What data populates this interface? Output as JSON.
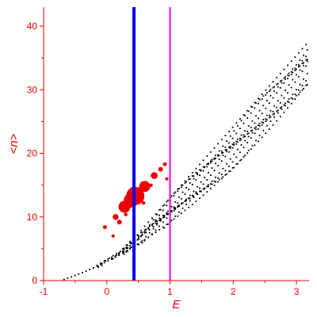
{
  "chart_data": {
    "type": "scatter",
    "xlabel": "E",
    "ylabel": "<n>",
    "xlim": [
      -1,
      3.2
    ],
    "ylim": [
      0,
      43
    ],
    "grid": false,
    "legend": "none",
    "colors": {
      "axis": "#ee0000",
      "background_points": "#000000",
      "highlight_points": "#ee0000",
      "line_blue": "#0000ee",
      "line_magenta": "#ee00ee"
    },
    "x_ticks": [
      {
        "value": -1,
        "label": "-1"
      },
      {
        "value": 0,
        "label": "0"
      },
      {
        "value": 1,
        "label": "1"
      },
      {
        "value": 2,
        "label": "2"
      },
      {
        "value": 3,
        "label": "3"
      }
    ],
    "y_ticks": [
      {
        "value": 0,
        "label": "0"
      },
      {
        "value": 10,
        "label": "10"
      },
      {
        "value": 20,
        "label": "20"
      },
      {
        "value": 30,
        "label": "30"
      },
      {
        "value": 40,
        "label": "40"
      }
    ],
    "vertical_lines": [
      {
        "x": 0.43,
        "color": "#0000ee"
      },
      {
        "x": 1.0,
        "color": "#ee00ee"
      }
    ],
    "highlight_points": [
      {
        "x": 0.45,
        "y": 13.3,
        "weight": 1.0
      },
      {
        "x": 0.38,
        "y": 12.6,
        "weight": 0.75
      },
      {
        "x": 0.28,
        "y": 11.6,
        "weight": 0.6
      },
      {
        "x": 0.6,
        "y": 14.8,
        "weight": 0.55
      },
      {
        "x": 0.42,
        "y": 14.0,
        "weight": 0.45
      },
      {
        "x": 0.75,
        "y": 16.5,
        "weight": 0.28
      },
      {
        "x": 0.14,
        "y": 10.0,
        "weight": 0.22
      },
      {
        "x": 0.85,
        "y": 17.5,
        "weight": 0.15
      },
      {
        "x": 0.2,
        "y": 9.2,
        "weight": 0.15
      },
      {
        "x": -0.03,
        "y": 8.4,
        "weight": 0.1
      },
      {
        "x": 0.92,
        "y": 18.3,
        "weight": 0.1
      },
      {
        "x": 0.3,
        "y": 10.4,
        "weight": 0.08
      },
      {
        "x": 0.58,
        "y": 12.2,
        "weight": 0.08
      },
      {
        "x": 0.7,
        "y": 15.0,
        "weight": 0.07
      },
      {
        "x": 0.1,
        "y": 7.0,
        "weight": 0.06
      },
      {
        "x": 0.95,
        "y": 16.0,
        "weight": 0.06
      }
    ]
  }
}
